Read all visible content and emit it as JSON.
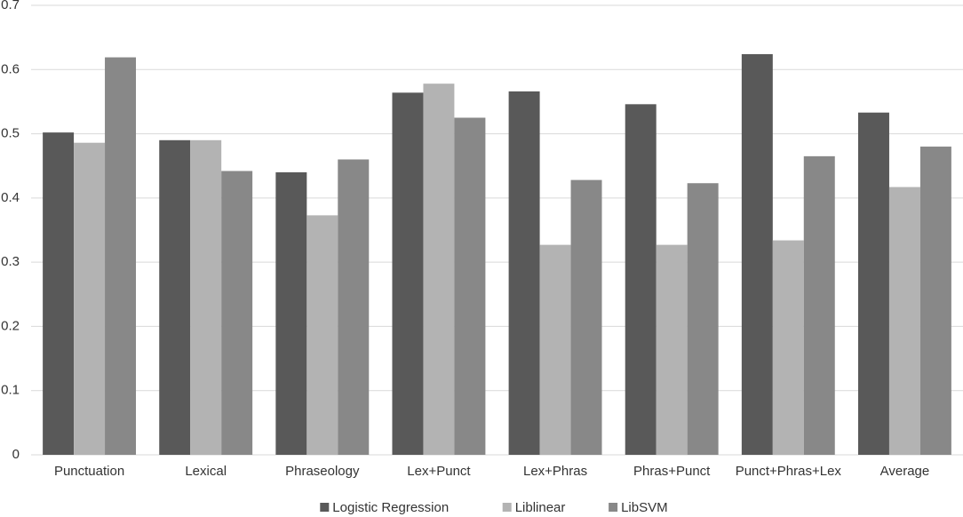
{
  "chart_data": {
    "type": "bar",
    "categories": [
      "Punctuation",
      "Lexical",
      "Phraseology",
      "Lex+Punct",
      "Lex+Phras",
      "Phras+Punct",
      "Punct+Phras+Lex",
      "Average"
    ],
    "series": [
      {
        "name": "Logistic Regression",
        "color": "#595959",
        "values": [
          0.502,
          0.49,
          0.44,
          0.564,
          0.566,
          0.546,
          0.624,
          0.533
        ]
      },
      {
        "name": "Liblinear",
        "color": "#b3b3b3",
        "values": [
          0.486,
          0.49,
          0.373,
          0.578,
          0.327,
          0.327,
          0.334,
          0.417
        ]
      },
      {
        "name": "LibSVM",
        "color": "#888888",
        "values": [
          0.619,
          0.442,
          0.46,
          0.525,
          0.428,
          0.423,
          0.465,
          0.48
        ]
      }
    ],
    "ylim": [
      0,
      0.7
    ],
    "yticks": [
      0,
      0.1,
      0.2,
      0.3,
      0.4,
      0.5,
      0.6,
      0.7
    ],
    "grid": true,
    "legend": "bottom"
  }
}
